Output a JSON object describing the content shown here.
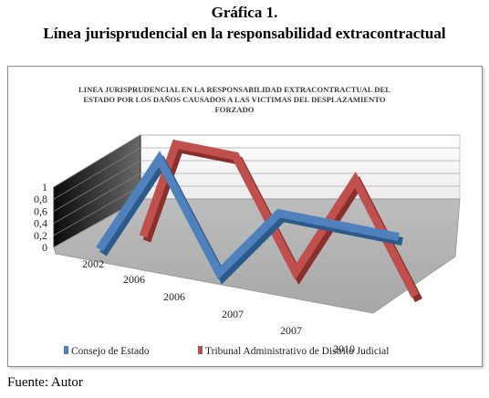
{
  "figure": {
    "caption_line1": "Gráfica 1.",
    "caption_line2": "Línea jurisprudencial en la responsabilidad extracontractual",
    "source": "Fuente: Autor"
  },
  "chart_data": {
    "type": "line",
    "title_lines": [
      "LINEA JURISPRUDENCIAL EN LA RESPONSABILIDAD EXTRACONTRACTUAL DEL",
      "ESTADO POR LOS DAÑOS CAUSADOS A LAS VICTIMAS DEL DESPLAZAMIENTO",
      "FORZADO"
    ],
    "categories": [
      "2002",
      "2006",
      "2006",
      "2007",
      "2007",
      "2010"
    ],
    "yticks": [
      "0",
      "0,2",
      "0,4",
      "0,6",
      "0,8",
      "1"
    ],
    "ylim": [
      0,
      1
    ],
    "series": [
      {
        "name": "Consejo de Estado",
        "values": [
          0,
          1,
          0,
          0.7,
          0.7,
          0.7
        ],
        "color": "#4f81bd"
      },
      {
        "name": "Tribunal Administrativo de Distrito Judicial",
        "values": [
          0,
          1,
          1,
          0,
          1,
          0
        ],
        "color": "#c0504d"
      }
    ],
    "grid": true,
    "legend": "bottom"
  }
}
